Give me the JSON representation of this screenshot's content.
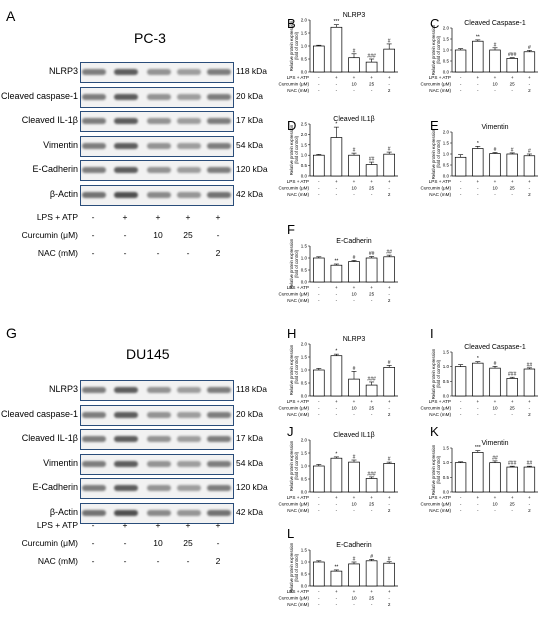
{
  "treatments": {
    "labels": [
      "LPS + ATP",
      "Curcumin (μM)",
      "NAC (mM)"
    ],
    "values": [
      [
        "-",
        "+",
        "+",
        "+",
        "+"
      ],
      [
        "-",
        "-",
        "10",
        "25",
        "-"
      ],
      [
        "-",
        "-",
        "-",
        "-",
        "2"
      ]
    ]
  },
  "blots": [
    {
      "letter": "A",
      "cell": "PC-3",
      "rows": [
        {
          "label": "NLRP3",
          "kda": "118 kDa"
        },
        {
          "label": "Cleaved caspase-1",
          "kda": "20 kDa"
        },
        {
          "label": "Cleaved IL-1β",
          "kda": "17 kDa"
        },
        {
          "label": "Vimentin",
          "kda": "54 kDa"
        },
        {
          "label": "E-Cadherin",
          "kda": "120 kDa"
        },
        {
          "label": "β-Actin",
          "kda": "42 kDa"
        }
      ]
    },
    {
      "letter": "G",
      "cell": "DU145",
      "rows": [
        {
          "label": "NLRP3",
          "kda": "118 kDa"
        },
        {
          "label": "Cleaved caspase-1",
          "kda": "20 kDa"
        },
        {
          "label": "Cleaved IL-1β",
          "kda": "17 kDa"
        },
        {
          "label": "Vimentin",
          "kda": "54 kDa"
        },
        {
          "label": "E-Cadherin",
          "kda": "120 kDa"
        },
        {
          "label": "β-Actin",
          "kda": "42 kDa"
        }
      ]
    }
  ],
  "chart_data": [
    {
      "type": "bar",
      "letter": "B",
      "title": "NLRP3",
      "ylabel": "Relative protein expression (fold of control)",
      "ylim": [
        0,
        2
      ],
      "yticks": [
        "0.0",
        "0.5",
        "1.0",
        "1.5",
        "2.0"
      ],
      "values": [
        1.0,
        1.72,
        0.55,
        0.38,
        0.88
      ],
      "errors": [
        0.03,
        0.1,
        0.15,
        0.12,
        0.2
      ],
      "sig": [
        "",
        "***",
        "#",
        "###",
        "#"
      ]
    },
    {
      "type": "bar",
      "letter": "C",
      "title": "Cleaved Caspase-1",
      "ylabel": "Relative protein expression (fold of control)",
      "ylim": [
        0,
        2
      ],
      "yticks": [
        "0.0",
        "0.5",
        "1.0",
        "1.5",
        "2.0"
      ],
      "values": [
        1.0,
        1.4,
        1.0,
        0.62,
        0.92
      ],
      "errors": [
        0.06,
        0.06,
        0.1,
        0.03,
        0.06
      ],
      "sig": [
        "",
        "**",
        "#",
        "###",
        "#"
      ]
    },
    {
      "type": "bar",
      "letter": "D",
      "title": "Cleaved IL1β",
      "ylabel": "Relative protein expression (fold of control)",
      "ylim": [
        0,
        2.5
      ],
      "yticks": [
        "0.0",
        "0.5",
        "1.0",
        "1.5",
        "2.0",
        "2.5"
      ],
      "values": [
        1.0,
        1.85,
        1.0,
        0.55,
        1.05
      ],
      "errors": [
        0.04,
        0.5,
        0.1,
        0.12,
        0.1
      ],
      "sig": [
        "",
        "*",
        "#",
        "##",
        "#"
      ]
    },
    {
      "type": "bar",
      "letter": "E",
      "title": "Vimentin",
      "ylabel": "Relative protein expression (fold of control)",
      "ylim": [
        0,
        2
      ],
      "yticks": [
        "0.0",
        "0.5",
        "1.0",
        "1.5",
        "2.0"
      ],
      "values": [
        0.85,
        1.25,
        1.02,
        1.0,
        0.92
      ],
      "errors": [
        0.12,
        0.1,
        0.05,
        0.05,
        0.08
      ],
      "sig": [
        "",
        "*",
        "#",
        "#",
        "#"
      ]
    },
    {
      "type": "bar",
      "letter": "F",
      "title": "E-Cadherin",
      "ylabel": "Relative protein expression (fold of control)",
      "ylim": [
        0,
        1.5
      ],
      "yticks": [
        "0.0",
        "0.5",
        "1.0",
        "1.5"
      ],
      "values": [
        1.0,
        0.7,
        0.85,
        1.0,
        1.05
      ],
      "errors": [
        0.05,
        0.05,
        0.05,
        0.06,
        0.07
      ],
      "sig": [
        "",
        "**",
        "#",
        "##",
        "##"
      ]
    },
    {
      "type": "bar",
      "letter": "H",
      "title": "NLRP3",
      "ylabel": "Relative protein expression (fold of control)",
      "ylim": [
        0,
        2
      ],
      "yticks": [
        "0.0",
        "0.5",
        "1.0",
        "1.5",
        "2.0"
      ],
      "values": [
        1.0,
        1.55,
        0.65,
        0.42,
        1.1
      ],
      "errors": [
        0.06,
        0.06,
        0.3,
        0.12,
        0.08
      ],
      "sig": [
        "",
        "*",
        "#",
        "###",
        "#"
      ]
    },
    {
      "type": "bar",
      "letter": "I",
      "title": "Cleaved Caspase-1",
      "ylabel": "Relative protein expression (fold of control)",
      "ylim": [
        0,
        1.5
      ],
      "yticks": [
        "0.0",
        "0.5",
        "1.0",
        "1.5"
      ],
      "values": [
        1.0,
        1.12,
        0.95,
        0.6,
        0.92
      ],
      "errors": [
        0.07,
        0.05,
        0.06,
        0.04,
        0.04
      ],
      "sig": [
        "",
        "*",
        "#",
        "###",
        "##"
      ]
    },
    {
      "type": "bar",
      "letter": "J",
      "title": "Cleaved IL1β",
      "ylabel": "Relative protein expression (fold of control)",
      "ylim": [
        0,
        2
      ],
      "yticks": [
        "0.0",
        "0.5",
        "1.0",
        "1.5",
        "2.0"
      ],
      "values": [
        1.0,
        1.3,
        1.15,
        0.52,
        1.1
      ],
      "errors": [
        0.06,
        0.05,
        0.08,
        0.06,
        0.05
      ],
      "sig": [
        "",
        "*",
        "#",
        "###",
        "#"
      ]
    },
    {
      "type": "bar",
      "letter": "K",
      "title": "Vimentin",
      "ylabel": "Relative protein expression (fold of control)",
      "ylim": [
        0,
        1.5
      ],
      "yticks": [
        "0.0",
        "0.5",
        "1.0",
        "1.5"
      ],
      "values": [
        1.0,
        1.35,
        1.0,
        0.85,
        0.85
      ],
      "errors": [
        0.03,
        0.06,
        0.06,
        0.03,
        0.03
      ],
      "sig": [
        "",
        "***",
        "##",
        "###",
        "##"
      ]
    },
    {
      "type": "bar",
      "letter": "L",
      "title": "E-Cadherin",
      "ylabel": "Relative protein expression (fold of control)",
      "ylim": [
        0,
        1.5
      ],
      "yticks": [
        "0.0",
        "0.5",
        "1.0",
        "1.5"
      ],
      "values": [
        1.0,
        0.62,
        0.92,
        1.05,
        0.95
      ],
      "errors": [
        0.05,
        0.05,
        0.08,
        0.06,
        0.06
      ],
      "sig": [
        "",
        "**",
        "#",
        "#",
        "#"
      ]
    }
  ]
}
